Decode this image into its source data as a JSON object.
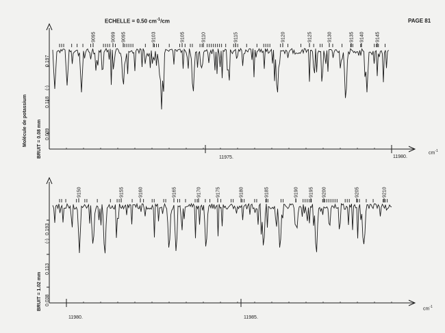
{
  "header": {
    "scale_prefix": "ECHELLE = 0.50 cm",
    "scale_exp": "-1",
    "scale_suffix": "/cm",
    "page": "PAGE 81"
  },
  "side_label": "Molécule de potassium",
  "chart_data": [
    {
      "type": "line",
      "noise_label": "BRUIT = 0.08 mm",
      "y_marker": "(-)",
      "y_ticks": [
        "0.197",
        "0.118",
        "0.039"
      ],
      "x_tick_labels": [
        "11975.",
        "11980."
      ],
      "x_unit": "cm",
      "x_unit_exp": "-1",
      "line_labels": [
        "9095",
        "9099",
        "9095",
        "9103",
        "9105",
        "9110",
        "9115",
        "9120",
        "9125",
        "9130",
        "9135",
        "9140",
        "9145"
      ]
    },
    {
      "type": "line",
      "noise_label": "BRUIT = 1.02 mm",
      "y_marker": "(-)",
      "y_ticks": [
        "0.193",
        "0.113",
        "0.038"
      ],
      "x_tick_labels": [
        "11980.",
        "11985."
      ],
      "x_unit": "cm",
      "x_unit_exp": "-1",
      "line_labels": [
        "9150",
        "9155",
        "9160",
        "9165",
        "9170",
        "9175",
        "9180",
        "9185",
        "9190",
        "9195",
        "9200",
        "9205",
        "9210"
      ]
    }
  ]
}
